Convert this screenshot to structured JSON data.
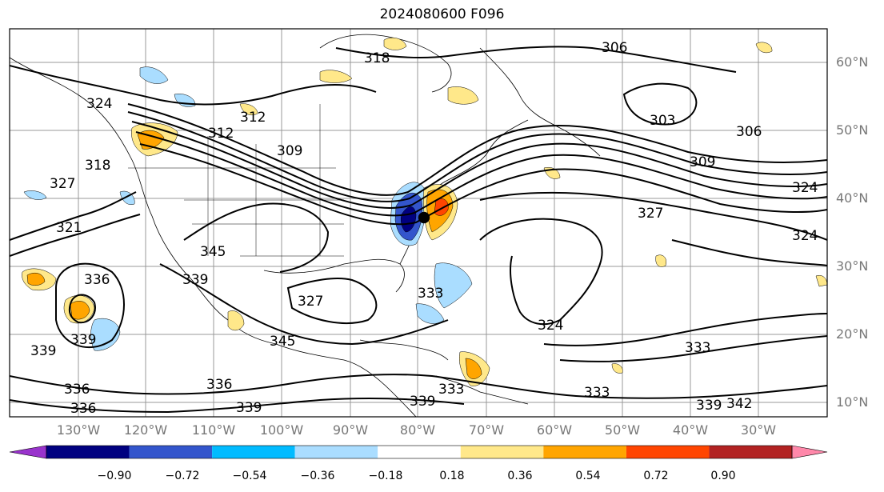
{
  "title": "2024080600 F096",
  "lat_labels": [
    "60°N",
    "50°N",
    "40°N",
    "30°N",
    "20°N",
    "10°N"
  ],
  "lon_labels": [
    "130°W",
    "120°W",
    "110°W",
    "100°W",
    "90°W",
    "80°W",
    "70°W",
    "60°W",
    "50°W",
    "40°W",
    "30°W"
  ],
  "colorbar": {
    "colors": [
      "#9933cc",
      "#000080",
      "#3355cc",
      "#00bbff",
      "#aaddff",
      "#ffffff",
      "#ffe88a",
      "#ffa500",
      "#ff4500",
      "#b22222",
      "#ff88aa"
    ],
    "ticks": [
      "−0.90",
      "−0.72",
      "−0.54",
      "−0.36",
      "−0.18",
      "0.18",
      "0.36",
      "0.54",
      "0.72",
      "0.90"
    ]
  },
  "contour_labels": [
    "318",
    "306",
    "303",
    "306",
    "309",
    "324",
    "327",
    "324",
    "312",
    "312",
    "309",
    "324",
    "318",
    "327",
    "321",
    "345",
    "339",
    "336",
    "339",
    "336",
    "339",
    "336",
    "345",
    "333",
    "327",
    "339",
    "333",
    "336",
    "339",
    "342",
    "339",
    "333",
    "333",
    "324"
  ]
}
